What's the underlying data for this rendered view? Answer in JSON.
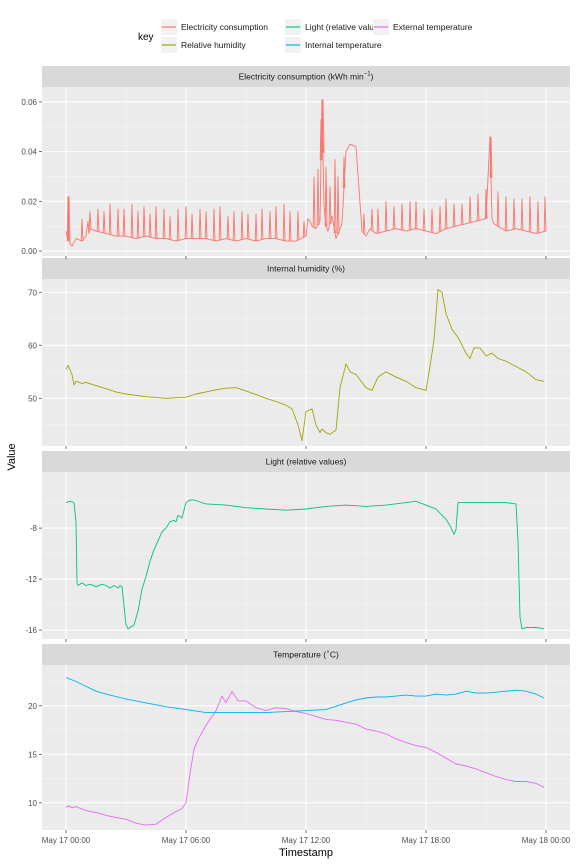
{
  "legend": {
    "title": "key",
    "entries": [
      {
        "label": "Electricity consumption",
        "color": "#f8766d"
      },
      {
        "label": "Light (relative values)",
        "color": "#00c08b"
      },
      {
        "label": "External temperature",
        "color": "#e76bf3"
      },
      {
        "label": "Relative humidity",
        "color": "#a3a500"
      },
      {
        "label": "Internal temperature",
        "color": "#00b0f6"
      }
    ]
  },
  "y_label": "Value",
  "x_label": "Timestamp",
  "x_ticks": [
    "May 17 00:00",
    "May 17 06:00",
    "May 17 12:00",
    "May 17 18:00",
    "May 18 00:00"
  ],
  "chart_data": [
    {
      "type": "line",
      "title": "Electricity consumption (kWh min",
      "title_sup": "−1",
      "title_suffix": ")",
      "ylim": [
        -0.002,
        0.066
      ],
      "y_ticks": [
        0.0,
        0.02,
        0.04,
        0.06
      ],
      "y_tick_labels": [
        "0.00",
        "0.02",
        "0.04",
        "0.06"
      ],
      "x_unit": "hours since May 17 00:00",
      "series": [
        {
          "name": "Electricity consumption",
          "color": "#f8766d",
          "x": [
            0,
            0.1,
            0.15,
            0.2,
            0.3,
            0.5,
            0.8,
            1.0,
            1.1,
            1.15,
            1.2,
            1.5,
            2.0,
            2.5,
            3.0,
            3.5,
            4.0,
            4.5,
            5.0,
            5.5,
            6.0,
            6.5,
            7.0,
            7.5,
            8.0,
            8.5,
            9.0,
            9.5,
            10.0,
            10.5,
            11.0,
            11.5,
            12.0,
            12.1,
            12.2,
            12.3,
            12.5,
            12.7,
            12.8,
            12.9,
            13.0,
            13.1,
            13.3,
            13.5,
            13.8,
            14.0,
            14.2,
            14.5,
            14.8,
            15.0,
            15.2,
            15.5,
            16.0,
            16.5,
            17.0,
            17.5,
            18.0,
            18.5,
            19.0,
            19.5,
            20.0,
            20.5,
            21.0,
            21.2,
            21.3,
            21.4,
            21.6,
            22.0,
            22.5,
            23.0,
            23.5,
            24.0
          ],
          "y": [
            0.008,
            0.004,
            0.022,
            0.003,
            0.002,
            0.005,
            0.004,
            0.006,
            0.012,
            0.007,
            0.009,
            0.008,
            0.007,
            0.006,
            0.006,
            0.005,
            0.006,
            0.005,
            0.005,
            0.004,
            0.005,
            0.005,
            0.005,
            0.004,
            0.005,
            0.004,
            0.005,
            0.004,
            0.005,
            0.005,
            0.004,
            0.004,
            0.006,
            0.013,
            0.012,
            0.01,
            0.009,
            0.012,
            0.061,
            0.018,
            0.01,
            0.008,
            0.014,
            0.005,
            0.011,
            0.04,
            0.043,
            0.042,
            0.008,
            0.006,
            0.009,
            0.007,
            0.008,
            0.009,
            0.008,
            0.009,
            0.008,
            0.007,
            0.009,
            0.01,
            0.011,
            0.012,
            0.013,
            0.046,
            0.013,
            0.011,
            0.01,
            0.008,
            0.009,
            0.008,
            0.007,
            0.008
          ],
          "spikes": [
            [
              0.1,
              0.022
            ],
            [
              0.8,
              0.013
            ],
            [
              1.2,
              0.016
            ],
            [
              1.6,
              0.017
            ],
            [
              1.9,
              0.016
            ],
            [
              2.2,
              0.019
            ],
            [
              2.6,
              0.017
            ],
            [
              2.9,
              0.017
            ],
            [
              3.3,
              0.019
            ],
            [
              3.6,
              0.016
            ],
            [
              3.9,
              0.018
            ],
            [
              4.2,
              0.015
            ],
            [
              4.5,
              0.018
            ],
            [
              4.9,
              0.017
            ],
            [
              5.2,
              0.014
            ],
            [
              5.6,
              0.017
            ],
            [
              6.0,
              0.018
            ],
            [
              6.3,
              0.015
            ],
            [
              6.7,
              0.017
            ],
            [
              7.0,
              0.016
            ],
            [
              7.4,
              0.017
            ],
            [
              7.7,
              0.018
            ],
            [
              8.1,
              0.014
            ],
            [
              8.4,
              0.016
            ],
            [
              8.8,
              0.016
            ],
            [
              9.1,
              0.015
            ],
            [
              9.5,
              0.015
            ],
            [
              9.8,
              0.017
            ],
            [
              10.2,
              0.016
            ],
            [
              10.5,
              0.018
            ],
            [
              10.9,
              0.019
            ],
            [
              11.2,
              0.016
            ],
            [
              11.6,
              0.016
            ],
            [
              11.9,
              0.012
            ],
            [
              12.4,
              0.03
            ],
            [
              12.6,
              0.033
            ],
            [
              12.75,
              0.053
            ],
            [
              12.85,
              0.061
            ],
            [
              13.0,
              0.034
            ],
            [
              13.2,
              0.026
            ],
            [
              13.45,
              0.037
            ],
            [
              13.6,
              0.03
            ],
            [
              13.9,
              0.038
            ],
            [
              14.9,
              0.015
            ],
            [
              15.3,
              0.017
            ],
            [
              15.6,
              0.017
            ],
            [
              16.0,
              0.02
            ],
            [
              16.4,
              0.018
            ],
            [
              16.8,
              0.019
            ],
            [
              17.2,
              0.02
            ],
            [
              17.5,
              0.02
            ],
            [
              17.9,
              0.017
            ],
            [
              18.3,
              0.017
            ],
            [
              18.7,
              0.018
            ],
            [
              19.0,
              0.021
            ],
            [
              19.4,
              0.019
            ],
            [
              19.8,
              0.019
            ],
            [
              20.2,
              0.022
            ],
            [
              20.6,
              0.023
            ],
            [
              21.0,
              0.025
            ],
            [
              21.25,
              0.046
            ],
            [
              21.6,
              0.024
            ],
            [
              22.0,
              0.022
            ],
            [
              22.4,
              0.021
            ],
            [
              22.8,
              0.021
            ],
            [
              23.2,
              0.022
            ],
            [
              23.6,
              0.02
            ],
            [
              23.95,
              0.022
            ]
          ]
        }
      ]
    },
    {
      "type": "line",
      "title": "Internal humidity (%)",
      "ylim": [
        41,
        72.5
      ],
      "y_ticks": [
        50,
        60,
        70
      ],
      "y_tick_labels": [
        "50",
        "60",
        "70"
      ],
      "x_unit": "hours since May 17 00:00",
      "series": [
        {
          "name": "Relative humidity",
          "color": "#a3a500",
          "x": [
            0,
            0.1,
            0.3,
            0.4,
            0.5,
            0.8,
            1.0,
            1.5,
            2.0,
            2.5,
            3.0,
            4.0,
            5.0,
            6.0,
            6.5,
            7.0,
            7.5,
            8.0,
            8.5,
            9.0,
            9.5,
            10.0,
            10.5,
            11.0,
            11.3,
            11.6,
            11.8,
            12.0,
            12.3,
            12.5,
            12.7,
            12.8,
            13.0,
            13.2,
            13.5,
            13.7,
            13.9,
            14.0,
            14.2,
            14.5,
            14.8,
            15.0,
            15.3,
            15.6,
            16.0,
            16.5,
            17.0,
            17.5,
            18.0,
            18.2,
            18.4,
            18.6,
            18.8,
            19.0,
            19.3,
            19.6,
            20.0,
            20.2,
            20.4,
            20.7,
            21.0,
            21.3,
            21.6,
            22.0,
            22.5,
            23.0,
            23.5,
            23.9
          ],
          "y": [
            55.5,
            56.2,
            54.5,
            52.5,
            53.2,
            52.8,
            53.0,
            52.4,
            51.8,
            51.2,
            50.8,
            50.3,
            50.0,
            50.2,
            50.8,
            51.2,
            51.6,
            51.9,
            52.0,
            51.4,
            50.7,
            50.0,
            49.4,
            48.7,
            48.0,
            45.0,
            42.0,
            47.5,
            48.0,
            45.0,
            43.5,
            44.2,
            43.5,
            43.2,
            44.0,
            52.0,
            55.0,
            56.5,
            55.0,
            54.5,
            53.0,
            52.0,
            51.5,
            54.0,
            55.0,
            54.0,
            53.2,
            52.0,
            51.5,
            56.0,
            61.0,
            70.5,
            70.0,
            66.0,
            63.0,
            61.5,
            58.5,
            57.5,
            59.5,
            59.5,
            58.0,
            58.5,
            57.5,
            57.0,
            56.0,
            55.0,
            53.5,
            53.2
          ]
        }
      ]
    },
    {
      "type": "line",
      "title": "Light (relative values)",
      "ylim": [
        -16.7,
        -3.6
      ],
      "y_ticks": [
        -16,
        -12,
        -8
      ],
      "y_tick_labels": [
        "-16",
        "-12",
        "-8"
      ],
      "x_unit": "hours since May 17 00:00",
      "series": [
        {
          "name": "Light (relative values)",
          "color": "#00c08b",
          "x": [
            0,
            0.2,
            0.4,
            0.5,
            0.55,
            0.6,
            0.8,
            1.0,
            1.2,
            1.5,
            1.8,
            2.0,
            2.2,
            2.4,
            2.6,
            2.7,
            2.8,
            3.0,
            3.1,
            3.2,
            3.4,
            3.6,
            3.8,
            4.0,
            4.2,
            4.4,
            4.6,
            4.8,
            5.0,
            5.2,
            5.4,
            5.5,
            5.6,
            5.8,
            6.0,
            6.2,
            6.4,
            7.0,
            8.0,
            9.0,
            10.0,
            11.0,
            12.0,
            13.0,
            14.0,
            15.0,
            16.0,
            17.0,
            17.5,
            18.0,
            18.5,
            18.8,
            19.0,
            19.2,
            19.4,
            19.5,
            19.6,
            20.0,
            21.0,
            22.0,
            22.5,
            22.6,
            22.7,
            22.8,
            23.0,
            23.5,
            23.9
          ],
          "y": [
            -6.0,
            -5.9,
            -6.0,
            -7.5,
            -12.3,
            -12.5,
            -12.3,
            -12.5,
            -12.4,
            -12.6,
            -12.4,
            -12.5,
            -12.7,
            -12.5,
            -12.7,
            -12.5,
            -12.6,
            -15.6,
            -15.9,
            -15.8,
            -15.6,
            -14.5,
            -12.8,
            -11.8,
            -10.6,
            -9.7,
            -9.0,
            -8.3,
            -8.0,
            -7.5,
            -7.4,
            -7.5,
            -7.0,
            -7.2,
            -6.0,
            -5.8,
            -5.8,
            -6.1,
            -6.2,
            -6.4,
            -6.5,
            -6.6,
            -6.5,
            -6.3,
            -6.2,
            -6.3,
            -6.2,
            -6.0,
            -5.9,
            -6.2,
            -6.5,
            -7.0,
            -7.3,
            -7.8,
            -8.5,
            -8.1,
            -6.0,
            -6.0,
            -6.0,
            -6.0,
            -6.1,
            -9.0,
            -15.0,
            -15.9,
            -15.8,
            -15.8,
            -15.9
          ]
        }
      ]
    },
    {
      "type": "line",
      "title": "Temperature (",
      "title_sup": "∘",
      "title_suffix": "C)",
      "ylim": [
        7.2,
        24.2
      ],
      "y_ticks": [
        10,
        15,
        20
      ],
      "y_tick_labels": [
        "10",
        "15",
        "20"
      ],
      "x_unit": "hours since May 17 00:00",
      "series": [
        {
          "name": "External temperature",
          "color": "#e76bf3",
          "x": [
            0,
            0.1,
            0.3,
            0.5,
            1.0,
            1.5,
            2.0,
            2.5,
            3.0,
            3.5,
            4.0,
            4.5,
            5.0,
            5.5,
            5.8,
            6.0,
            6.2,
            6.4,
            6.6,
            7.0,
            7.5,
            7.8,
            8.0,
            8.3,
            8.6,
            9.0,
            9.5,
            10.0,
            10.5,
            11.0,
            11.5,
            12.0,
            12.5,
            13.0,
            13.5,
            14.0,
            14.5,
            15.0,
            15.5,
            16.0,
            16.5,
            17.0,
            17.5,
            18.0,
            18.5,
            19.0,
            19.5,
            20.0,
            20.5,
            21.0,
            21.5,
            22.0,
            22.5,
            23.0,
            23.5,
            23.9
          ],
          "y": [
            9.5,
            9.7,
            9.5,
            9.6,
            9.2,
            9.0,
            8.7,
            8.5,
            8.3,
            7.9,
            7.7,
            7.8,
            8.5,
            9.1,
            9.4,
            10.0,
            13.0,
            15.5,
            16.5,
            18.0,
            19.5,
            21.0,
            20.3,
            21.5,
            20.5,
            20.5,
            19.8,
            19.5,
            19.8,
            19.7,
            19.4,
            19.2,
            18.9,
            18.6,
            18.5,
            18.3,
            18.1,
            17.6,
            17.4,
            17.1,
            16.6,
            16.2,
            15.9,
            15.7,
            15.2,
            14.6,
            14.0,
            13.8,
            13.5,
            13.1,
            12.7,
            12.4,
            12.2,
            12.2,
            12.0,
            11.6
          ]
        },
        {
          "name": "Internal temperature",
          "color": "#00b0f6",
          "x": [
            0,
            0.5,
            1.0,
            1.5,
            2.0,
            3.0,
            4.0,
            5.0,
            6.0,
            7.0,
            8.0,
            9.0,
            10.0,
            11.0,
            12.0,
            13.0,
            14.0,
            14.5,
            15.0,
            15.5,
            16.0,
            16.5,
            17.0,
            17.5,
            18.0,
            18.5,
            19.0,
            19.5,
            20.0,
            20.5,
            21.0,
            21.5,
            22.0,
            22.5,
            23.0,
            23.5,
            23.9
          ],
          "y": [
            22.9,
            22.5,
            22.0,
            21.5,
            21.2,
            20.7,
            20.3,
            19.9,
            19.6,
            19.3,
            19.3,
            19.3,
            19.3,
            19.4,
            19.5,
            19.6,
            20.3,
            20.6,
            20.8,
            20.9,
            20.9,
            21.0,
            21.1,
            21.0,
            21.0,
            21.2,
            21.1,
            21.2,
            21.5,
            21.3,
            21.3,
            21.4,
            21.5,
            21.6,
            21.5,
            21.2,
            20.8
          ]
        }
      ]
    }
  ]
}
